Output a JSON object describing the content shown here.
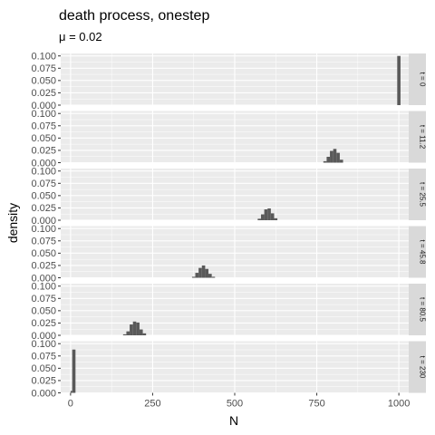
{
  "chart_data": {
    "type": "bar",
    "title": "death process, onestep",
    "subtitle": "μ = 0.02",
    "xlabel": "N",
    "ylabel": "density",
    "xlim": [
      -30,
      1030
    ],
    "ylim": [
      0,
      0.105
    ],
    "x_ticks": [
      0,
      250,
      500,
      750,
      1000
    ],
    "x_tick_labels": [
      "0",
      "250",
      "500",
      "750",
      "1000"
    ],
    "y_ticks": [
      0,
      0.025,
      0.05,
      0.075,
      0.1
    ],
    "y_tick_labels": [
      "0.000",
      "0.025",
      "0.050",
      "0.075",
      "0.100"
    ],
    "bin_width": 10,
    "grid": true,
    "facets": [
      {
        "label": "t = 0",
        "bins": [
          [
            995,
            1005,
            0.1
          ]
        ]
      },
      {
        "label": "t = 11.2",
        "bins": [
          [
            770,
            780,
            0.003
          ],
          [
            780,
            790,
            0.012
          ],
          [
            790,
            800,
            0.024
          ],
          [
            800,
            810,
            0.028
          ],
          [
            810,
            820,
            0.02
          ],
          [
            820,
            830,
            0.006
          ]
        ]
      },
      {
        "label": "t = 25.5",
        "bins": [
          [
            570,
            580,
            0.003
          ],
          [
            580,
            590,
            0.012
          ],
          [
            590,
            600,
            0.022
          ],
          [
            600,
            610,
            0.024
          ],
          [
            610,
            620,
            0.014
          ],
          [
            620,
            630,
            0.004
          ]
        ]
      },
      {
        "label": "t = 45.8",
        "bins": [
          [
            370,
            380,
            0.002
          ],
          [
            380,
            390,
            0.01
          ],
          [
            390,
            400,
            0.02
          ],
          [
            400,
            410,
            0.025
          ],
          [
            410,
            420,
            0.018
          ],
          [
            420,
            430,
            0.008
          ],
          [
            430,
            440,
            0.002
          ]
        ]
      },
      {
        "label": "t = 80.5",
        "bins": [
          [
            160,
            170,
            0.002
          ],
          [
            170,
            180,
            0.008
          ],
          [
            180,
            190,
            0.022
          ],
          [
            190,
            200,
            0.028
          ],
          [
            200,
            210,
            0.026
          ],
          [
            210,
            220,
            0.012
          ],
          [
            220,
            230,
            0.004
          ]
        ]
      },
      {
        "label": "t = 230",
        "bins": [
          [
            0,
            5,
            0.004
          ],
          [
            5,
            15,
            0.088
          ]
        ]
      }
    ]
  }
}
